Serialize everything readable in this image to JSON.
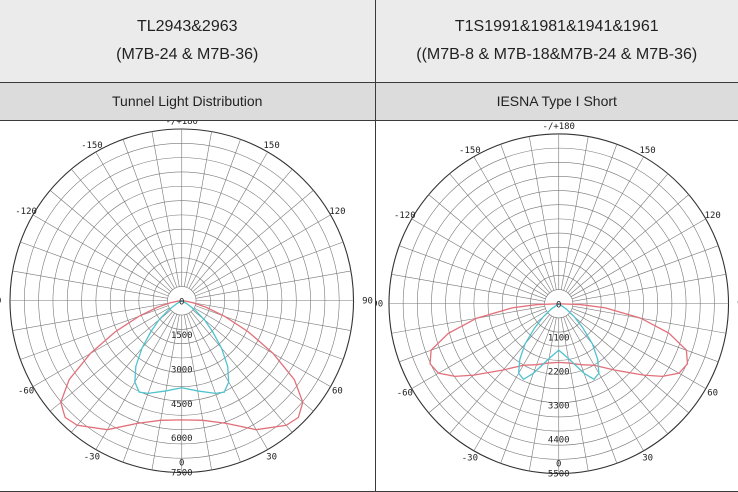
{
  "table": {
    "left": {
      "header_line1": "TL2943&2963",
      "header_line2": "(M7B-24 & M7B-36)",
      "subheader": "Tunnel Light Distribution"
    },
    "right": {
      "header_line1": "T1S1991&1981&1941&1961",
      "header_line2": "((M7B-8 & M7B-18&M7B-24 & M7B-36)",
      "subheader": "IESNA Type I Short"
    }
  },
  "chart_data": [
    {
      "type": "polar-line",
      "angle_unit": "degrees",
      "angle_labels": [
        {
          "angle": 180,
          "text": "-/+180"
        },
        {
          "angle": -150,
          "text": "-150"
        },
        {
          "angle": 150,
          "text": "150"
        },
        {
          "angle": -120,
          "text": "-120"
        },
        {
          "angle": 120,
          "text": "120"
        },
        {
          "angle": -90,
          "text": "90"
        },
        {
          "angle": 90,
          "text": "90"
        },
        {
          "angle": -60,
          "text": "-60"
        },
        {
          "angle": 60,
          "text": "60"
        },
        {
          "angle": -30,
          "text": "-30"
        },
        {
          "angle": 30,
          "text": "30"
        },
        {
          "angle": 0,
          "text": "0"
        }
      ],
      "radial_ticks": [
        0,
        1500,
        3000,
        4500,
        6000,
        7500
      ],
      "radial_tick_labels": [
        "0",
        "1500",
        "3000",
        "4500",
        "6000",
        "7500"
      ],
      "rmax": 7500,
      "series": [
        {
          "color": "#e2707a",
          "points": [
            [
              0,
              5200
            ],
            [
              10,
              5300
            ],
            [
              20,
              5700
            ],
            [
              30,
              6500
            ],
            [
              40,
              7100
            ],
            [
              45,
              7200
            ],
            [
              50,
              6900
            ],
            [
              55,
              6000
            ],
            [
              60,
              4600
            ],
            [
              65,
              3200
            ],
            [
              70,
              2000
            ],
            [
              75,
              1100
            ],
            [
              80,
              500
            ],
            [
              85,
              150
            ],
            [
              90,
              0
            ],
            [
              -10,
              5300
            ],
            [
              -20,
              5700
            ],
            [
              -30,
              6500
            ],
            [
              -40,
              7100
            ],
            [
              -45,
              7200
            ],
            [
              -50,
              6900
            ],
            [
              -55,
              6000
            ],
            [
              -60,
              4600
            ],
            [
              -65,
              3200
            ],
            [
              -70,
              2000
            ],
            [
              -75,
              1100
            ],
            [
              -80,
              500
            ],
            [
              -85,
              150
            ],
            [
              -90,
              0
            ]
          ]
        },
        {
          "color": "#4fc3cf",
          "points": [
            [
              0,
              3800
            ],
            [
              10,
              4000
            ],
            [
              20,
              4300
            ],
            [
              25,
              4400
            ],
            [
              30,
              4100
            ],
            [
              35,
              3500
            ],
            [
              40,
              2700
            ],
            [
              45,
              1900
            ],
            [
              50,
              1300
            ],
            [
              55,
              700
            ],
            [
              60,
              250
            ],
            [
              65,
              0
            ],
            [
              -10,
              4000
            ],
            [
              -20,
              4300
            ],
            [
              -25,
              4400
            ],
            [
              -30,
              4100
            ],
            [
              -35,
              3500
            ],
            [
              -40,
              2700
            ],
            [
              -45,
              1900
            ],
            [
              -50,
              1300
            ],
            [
              -55,
              700
            ],
            [
              -60,
              250
            ],
            [
              -65,
              0
            ]
          ]
        }
      ]
    },
    {
      "type": "polar-line",
      "angle_unit": "degrees",
      "angle_labels": [
        {
          "angle": 180,
          "text": "-/+180"
        },
        {
          "angle": -150,
          "text": "-150"
        },
        {
          "angle": 150,
          "text": "150"
        },
        {
          "angle": -120,
          "text": "-120"
        },
        {
          "angle": 120,
          "text": "120"
        },
        {
          "angle": -90,
          "text": "-90"
        },
        {
          "angle": 90,
          "text": "90"
        },
        {
          "angle": -60,
          "text": "-60"
        },
        {
          "angle": 60,
          "text": "60"
        },
        {
          "angle": -30,
          "text": "-30"
        },
        {
          "angle": 30,
          "text": "30"
        },
        {
          "angle": 0,
          "text": "0"
        }
      ],
      "radial_ticks": [
        0,
        1100,
        2200,
        3300,
        4400,
        5500
      ],
      "radial_tick_labels": [
        "0",
        "1100",
        "2200",
        "3300",
        "4400",
        "5500"
      ],
      "rmax": 5500,
      "series": [
        {
          "color": "#e2707a",
          "points": [
            [
              0,
              1900
            ],
            [
              10,
              1950
            ],
            [
              20,
              2100
            ],
            [
              30,
              2300
            ],
            [
              40,
              2800
            ],
            [
              50,
              3600
            ],
            [
              55,
              4100
            ],
            [
              60,
              4500
            ],
            [
              65,
              4600
            ],
            [
              70,
              4400
            ],
            [
              75,
              3700
            ],
            [
              80,
              2700
            ],
            [
              85,
              1500
            ],
            [
              88,
              700
            ],
            [
              90,
              0
            ],
            [
              -10,
              1950
            ],
            [
              -20,
              2100
            ],
            [
              -30,
              2300
            ],
            [
              -40,
              2800
            ],
            [
              -50,
              3600
            ],
            [
              -55,
              4100
            ],
            [
              -60,
              4500
            ],
            [
              -65,
              4600
            ],
            [
              -70,
              4400
            ],
            [
              -75,
              3700
            ],
            [
              -80,
              2700
            ],
            [
              -85,
              1500
            ],
            [
              -88,
              700
            ],
            [
              -90,
              0
            ]
          ]
        },
        {
          "color": "#4fc3cf",
          "points": [
            [
              0,
              1500
            ],
            [
              10,
              1800
            ],
            [
              20,
              2400
            ],
            [
              25,
              2700
            ],
            [
              30,
              2600
            ],
            [
              35,
              2200
            ],
            [
              40,
              1700
            ],
            [
              45,
              1100
            ],
            [
              50,
              650
            ],
            [
              55,
              300
            ],
            [
              60,
              0
            ],
            [
              -10,
              1800
            ],
            [
              -20,
              2400
            ],
            [
              -25,
              2700
            ],
            [
              -30,
              2600
            ],
            [
              -35,
              2200
            ],
            [
              -40,
              1700
            ],
            [
              -45,
              1100
            ],
            [
              -50,
              650
            ],
            [
              -55,
              300
            ],
            [
              -60,
              0
            ]
          ]
        }
      ]
    }
  ]
}
